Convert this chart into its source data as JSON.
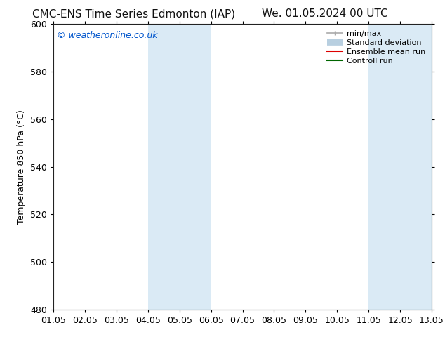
{
  "title_left": "CMC-ENS Time Series Edmonton (IAP)",
  "title_right": "We. 01.05.2024 00 UTC",
  "ylabel": "Temperature 850 hPa (°C)",
  "xlim_dates": [
    "01.05",
    "02.05",
    "03.05",
    "04.05",
    "05.05",
    "06.05",
    "07.05",
    "08.05",
    "09.05",
    "10.05",
    "11.05",
    "12.05",
    "13.05"
  ],
  "ylim": [
    480,
    600
  ],
  "yticks": [
    480,
    500,
    520,
    540,
    560,
    580,
    600
  ],
  "bg_color": "#ffffff",
  "shaded_bands": [
    {
      "xstart": 3.0,
      "xend": 5.0
    },
    {
      "xstart": 10.0,
      "xend": 12.0
    }
  ],
  "shaded_color": "#daeaf5",
  "watermark_text": "© weatheronline.co.uk",
  "watermark_color": "#0055cc",
  "legend_entries": [
    {
      "label": "min/max",
      "color": "#aaaaaa",
      "lw": 1.2
    },
    {
      "label": "Standard deviation",
      "color": "#b8cfe0",
      "lw": 7
    },
    {
      "label": "Ensemble mean run",
      "color": "#dd0000",
      "lw": 1.5
    },
    {
      "label": "Controll run",
      "color": "#006600",
      "lw": 1.5
    }
  ],
  "font_size_title": 11,
  "font_size_ylabel": 9,
  "font_size_ticks": 9,
  "font_size_watermark": 9,
  "font_size_legend": 8,
  "n_xpoints": 13
}
